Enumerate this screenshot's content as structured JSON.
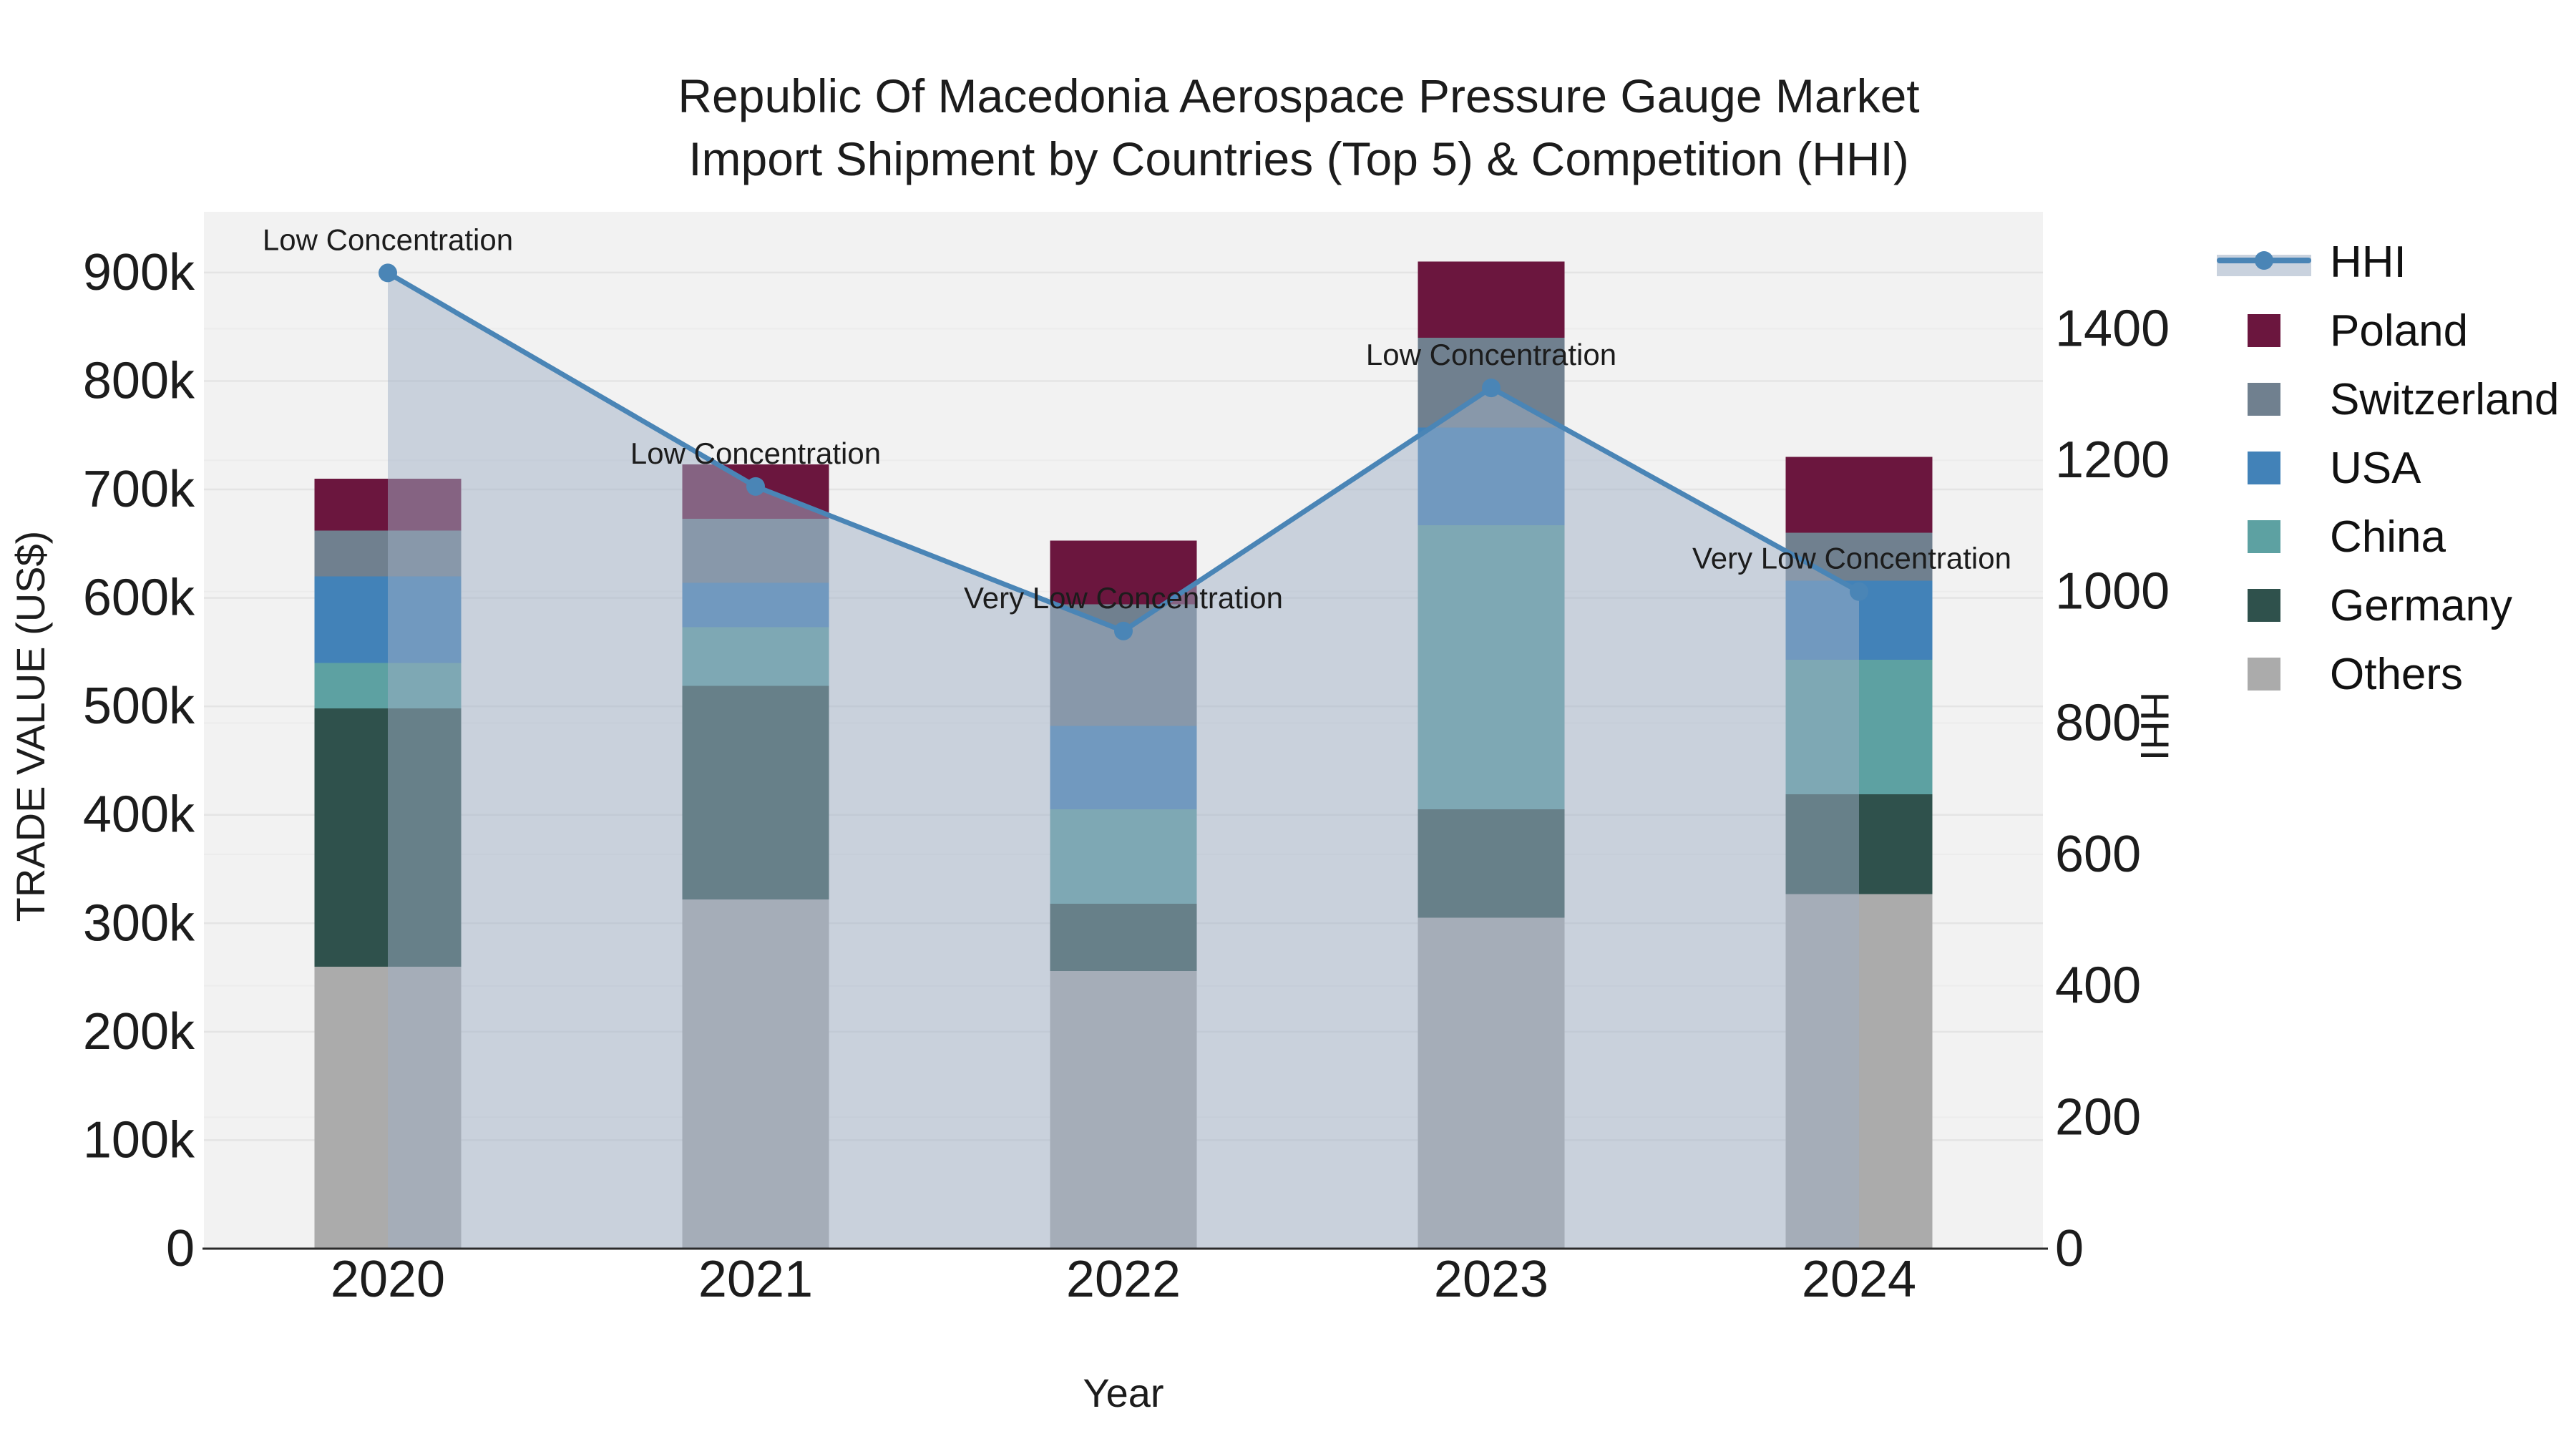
{
  "chart_data": {
    "type": "stacked-bar+line",
    "title_line1": "Republic Of Macedonia Aerospace Pressure Gauge Market",
    "title_line2": "Import Shipment by Countries (Top 5) & Competition (HHI)",
    "xlabel": "Year",
    "ylabel_left": "TRADE VALUE (US$)",
    "ylabel_right": "HHI",
    "categories": [
      "2020",
      "2021",
      "2022",
      "2023",
      "2024"
    ],
    "series": [
      {
        "name": "Poland",
        "color": "#6b163e",
        "values": [
          48000,
          50000,
          59000,
          70000,
          70000
        ]
      },
      {
        "name": "Switzerland",
        "color": "#70808f",
        "values": [
          42000,
          59000,
          112000,
          83000,
          44000
        ]
      },
      {
        "name": "USA",
        "color": "#4282b8",
        "values": [
          80000,
          41000,
          77000,
          90000,
          73000
        ]
      },
      {
        "name": "China",
        "color": "#5da1a2",
        "values": [
          42000,
          54000,
          87000,
          262000,
          124000
        ]
      },
      {
        "name": "Germany",
        "color": "#2f514c",
        "values": [
          238000,
          197000,
          62000,
          100000,
          92000
        ]
      },
      {
        "name": "Others",
        "color": "#ababab",
        "values": [
          260000,
          322000,
          256000,
          305000,
          327000
        ]
      }
    ],
    "stack_order_bottom_to_top": [
      "Others",
      "Germany",
      "China",
      "USA",
      "Switzerland",
      "Poland"
    ],
    "bar_totals": [
      710000,
      723000,
      653000,
      910000,
      730000
    ],
    "hhi": {
      "label": "HHI",
      "line_color": "#4a85b6",
      "area_fill": "rgba(160,176,198,0.5)",
      "values": [
        1485,
        1160,
        940,
        1310,
        1000
      ],
      "annotations": [
        "Low Concentration",
        "Low Concentration",
        "Very Low Concentration",
        "Low Concentration",
        "Very Low Concentration"
      ]
    },
    "axes": {
      "left": {
        "lim": [
          0,
          956000
        ],
        "ticks": [
          {
            "v": 0,
            "label": "0"
          },
          {
            "v": 100000,
            "label": "100k"
          },
          {
            "v": 200000,
            "label": "200k"
          },
          {
            "v": 300000,
            "label": "300k"
          },
          {
            "v": 400000,
            "label": "400k"
          },
          {
            "v": 500000,
            "label": "500k"
          },
          {
            "v": 600000,
            "label": "600k"
          },
          {
            "v": 700000,
            "label": "700k"
          },
          {
            "v": 800000,
            "label": "800k"
          },
          {
            "v": 900000,
            "label": "900k"
          }
        ]
      },
      "right": {
        "lim": [
          0,
          1578
        ],
        "ticks": [
          {
            "v": 0,
            "label": "0"
          },
          {
            "v": 200,
            "label": "200"
          },
          {
            "v": 400,
            "label": "400"
          },
          {
            "v": 600,
            "label": "600"
          },
          {
            "v": 800,
            "label": "800"
          },
          {
            "v": 1000,
            "label": "1000"
          },
          {
            "v": 1200,
            "label": "1200"
          },
          {
            "v": 1400,
            "label": "1400"
          }
        ]
      }
    },
    "legend_order": [
      "HHI",
      "Poland",
      "Switzerland",
      "USA",
      "China",
      "Germany",
      "Others"
    ],
    "colors": {
      "plot_bg": "#f2f2f2",
      "grid_major": "#e4e4e4",
      "grid_minor": "#ececec",
      "axis_line": "#2b2b2b",
      "text": "#1c1c1c"
    }
  }
}
